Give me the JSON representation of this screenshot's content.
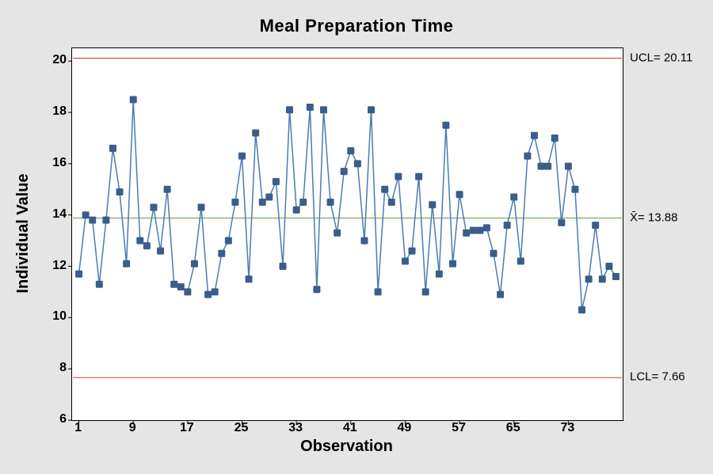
{
  "chart": {
    "type": "control-chart",
    "title": "Meal Preparation Time",
    "xlabel": "Observation",
    "ylabel": "Individual Value",
    "title_fontsize": 22,
    "label_fontsize": 20,
    "tick_fontsize": 16,
    "background_color": "#e5e5e5",
    "plot_background": "#ffffff",
    "plot_border": "#000000",
    "ylim": [
      6,
      20.5
    ],
    "xlim": [
      0,
      81
    ],
    "yticks": [
      6,
      8,
      10,
      12,
      14,
      16,
      18,
      20
    ],
    "xticks": [
      1,
      9,
      17,
      25,
      33,
      41,
      49,
      57,
      65,
      73
    ],
    "line_color": "#4a7cb5",
    "marker_color": "#3b5d8a",
    "marker_size": 4.5,
    "line_width": 1.5,
    "ucl_color": "#c25a4a",
    "lcl_color": "#c25a4a",
    "center_color": "#6aa84f",
    "reference_lines": {
      "ucl": {
        "value": 20.11,
        "label": "UCL= 20.11"
      },
      "center": {
        "value": 13.88,
        "label": "X̄= 13.88"
      },
      "lcl": {
        "value": 7.66,
        "label": "LCL= 7.66"
      }
    },
    "data": {
      "x": [
        1,
        2,
        3,
        4,
        5,
        6,
        7,
        8,
        9,
        10,
        11,
        12,
        13,
        14,
        15,
        16,
        17,
        18,
        19,
        20,
        21,
        22,
        23,
        24,
        25,
        26,
        27,
        28,
        29,
        30,
        31,
        32,
        33,
        34,
        35,
        36,
        37,
        38,
        39,
        40,
        41,
        42,
        43,
        44,
        45,
        46,
        47,
        48,
        49,
        50,
        51,
        52,
        53,
        54,
        55,
        56,
        57,
        58,
        59,
        60,
        61,
        62,
        63,
        64,
        65,
        66,
        67,
        68,
        69,
        70,
        71,
        72,
        73,
        74,
        75,
        76,
        77,
        78,
        79,
        80
      ],
      "y": [
        11.7,
        14.0,
        13.8,
        11.3,
        13.8,
        16.6,
        14.9,
        12.1,
        18.5,
        13.0,
        12.8,
        14.3,
        12.6,
        15.0,
        11.3,
        11.2,
        11.0,
        12.1,
        14.3,
        10.9,
        11.0,
        12.5,
        13.0,
        14.5,
        16.3,
        11.5,
        17.2,
        14.5,
        14.7,
        15.3,
        12.0,
        18.1,
        14.2,
        14.5,
        18.2,
        11.1,
        18.1,
        14.5,
        13.3,
        15.7,
        16.5,
        16.0,
        13.0,
        18.1,
        11.0,
        15.0,
        14.5,
        15.5,
        12.2,
        12.6,
        15.5,
        11.0,
        14.4,
        11.7,
        17.5,
        12.1,
        14.8,
        13.3,
        13.4,
        13.4,
        13.5,
        12.5,
        10.9,
        13.6,
        14.7,
        12.2,
        16.3,
        17.1,
        15.9,
        15.9,
        17.0,
        13.7,
        15.9,
        15.0,
        10.3,
        11.5,
        13.6,
        11.5,
        12.0,
        11.6
      ]
    }
  }
}
